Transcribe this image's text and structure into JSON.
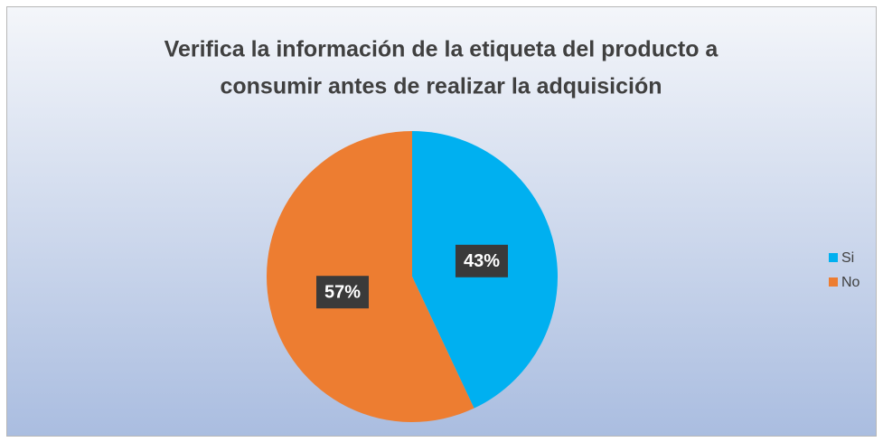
{
  "chart_data": {
    "type": "pie",
    "title": [
      "Verifica la información de la etiqueta del producto a",
      "consumir antes de realizar la adquisición"
    ],
    "categories": [
      "Si",
      "No"
    ],
    "values": [
      43,
      57
    ],
    "value_labels": [
      "43%",
      "57%"
    ],
    "colors": [
      "#00b0f0",
      "#ed7d31"
    ],
    "legend": "right"
  }
}
